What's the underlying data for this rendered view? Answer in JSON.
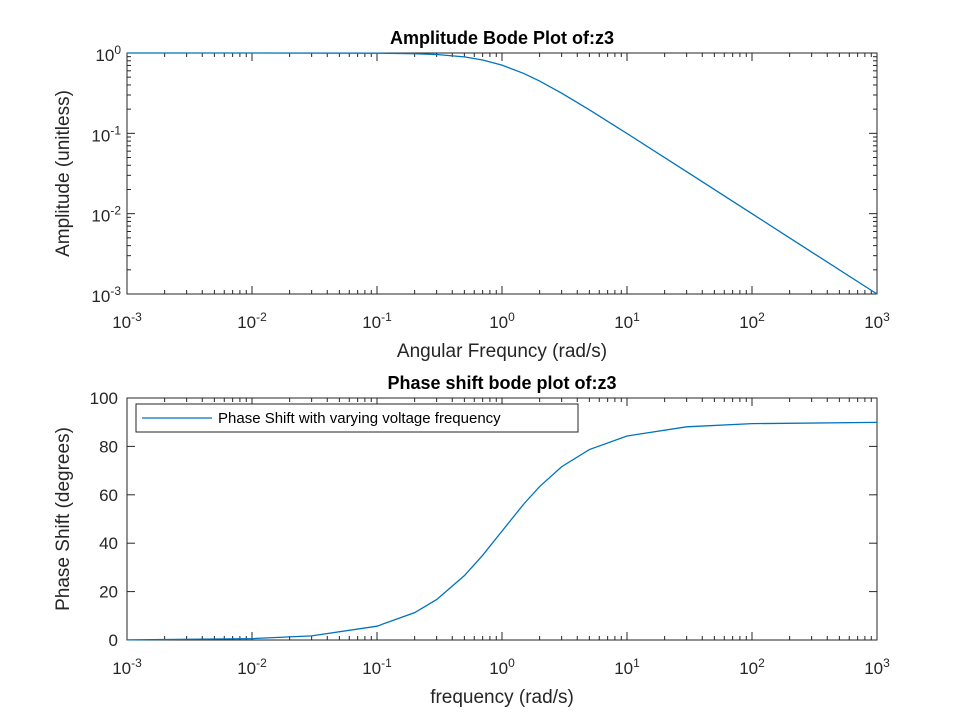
{
  "chart_data": [
    {
      "type": "line",
      "title": "Amplitude Bode Plot of:z3",
      "xlabel": "Angular Frequncy (rad/s)",
      "ylabel": "Amplitude (unitless)",
      "xscale": "log",
      "yscale": "log",
      "xlim": [
        0.001,
        1000
      ],
      "ylim": [
        0.001,
        1
      ],
      "xticks": [
        {
          "base": "10",
          "exp": "-3"
        },
        {
          "base": "10",
          "exp": "-2"
        },
        {
          "base": "10",
          "exp": "-1"
        },
        {
          "base": "10",
          "exp": "0"
        },
        {
          "base": "10",
          "exp": "1"
        },
        {
          "base": "10",
          "exp": "2"
        },
        {
          "base": "10",
          "exp": "3"
        }
      ],
      "yticks": [
        {
          "base": "10",
          "exp": "-3"
        },
        {
          "base": "10",
          "exp": "-2"
        },
        {
          "base": "10",
          "exp": "-1"
        },
        {
          "base": "10",
          "exp": "0"
        }
      ],
      "grid": false,
      "legend": null,
      "line_color": "#0072BD",
      "series": [
        {
          "x": [
            0.001,
            0.01,
            0.1,
            0.2,
            0.3,
            0.5,
            0.7,
            1,
            1.5,
            2,
            3,
            5,
            10,
            30,
            100,
            300,
            1000
          ],
          "values": [
            1.0,
            1.0,
            0.995,
            0.981,
            0.958,
            0.894,
            0.819,
            0.707,
            0.555,
            0.447,
            0.316,
            0.196,
            0.0995,
            0.0333,
            0.01,
            0.00333,
            0.001
          ]
        }
      ]
    },
    {
      "type": "line",
      "title": "Phase shift bode plot of:z3",
      "xlabel": "frequency (rad/s)",
      "ylabel": "Phase Shift (degrees)",
      "xscale": "log",
      "yscale": "linear",
      "xlim": [
        0.001,
        1000
      ],
      "ylim": [
        0,
        100
      ],
      "xticks": [
        {
          "base": "10",
          "exp": "-3"
        },
        {
          "base": "10",
          "exp": "-2"
        },
        {
          "base": "10",
          "exp": "-1"
        },
        {
          "base": "10",
          "exp": "0"
        },
        {
          "base": "10",
          "exp": "1"
        },
        {
          "base": "10",
          "exp": "2"
        },
        {
          "base": "10",
          "exp": "3"
        }
      ],
      "yticks": [
        "0",
        "20",
        "40",
        "60",
        "80",
        "100"
      ],
      "grid": false,
      "legend": "top-left",
      "line_color": "#0072BD",
      "series": [
        {
          "name": "Phase Shift with varying voltage frequency",
          "x": [
            0.001,
            0.01,
            0.03,
            0.1,
            0.2,
            0.3,
            0.5,
            0.7,
            1,
            1.5,
            2,
            3,
            5,
            10,
            30,
            100,
            1000
          ],
          "values": [
            0.06,
            0.57,
            1.72,
            5.71,
            11.3,
            16.7,
            26.6,
            35.0,
            45.0,
            56.3,
            63.4,
            71.6,
            78.7,
            84.3,
            88.1,
            89.4,
            89.94
          ]
        }
      ]
    }
  ]
}
